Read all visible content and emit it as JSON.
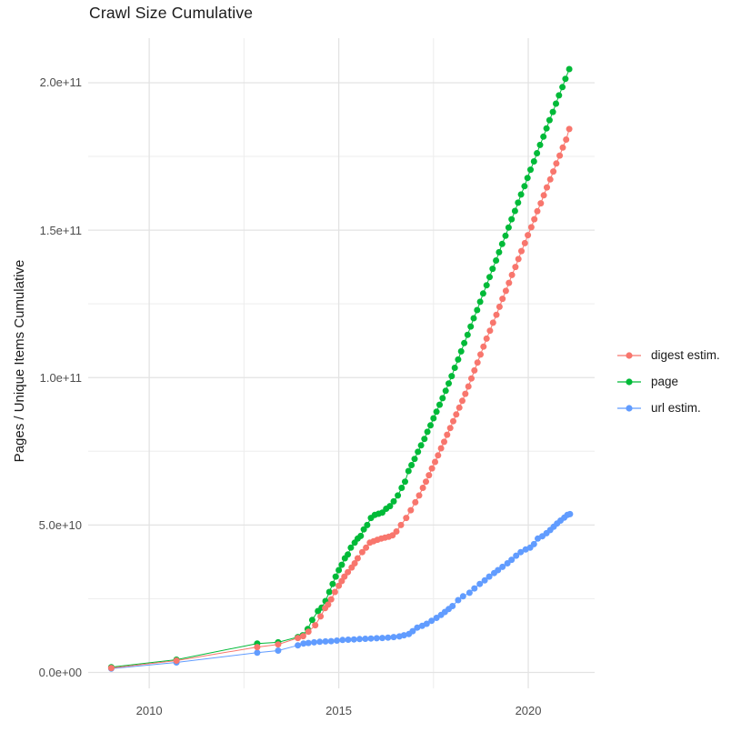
{
  "title": "Crawl Size Cumulative",
  "chart_data": {
    "type": "scatter",
    "title": "Crawl Size Cumulative",
    "xlabel": "",
    "ylabel": "Pages / Unique Items Cumulative",
    "grid": true,
    "legend_position": "right",
    "x_ticks": [
      {
        "value": 2010,
        "label": "2010"
      },
      {
        "value": 2015,
        "label": "2015"
      },
      {
        "value": 2020,
        "label": "2020"
      }
    ],
    "y_ticks": [
      {
        "value": 0,
        "label": "0.0e+00"
      },
      {
        "value": 50,
        "label": "5.0e+10"
      },
      {
        "value": 100,
        "label": "1.0e+11"
      },
      {
        "value": 150,
        "label": "1.5e+11"
      },
      {
        "value": 200,
        "label": "2.0e+11"
      }
    ],
    "xlim": [
      2008.39,
      2021.75
    ],
    "ylim_billions": [
      -5.4,
      215.1
    ],
    "point_unit": "[year, cumulative count in billions (1e9)]",
    "series": [
      {
        "name": "digest estim.",
        "color": "#F8766D",
        "points": [
          [
            2009.0,
            1.5
          ],
          [
            2010.72,
            4.0
          ],
          [
            2012.85,
            8.6
          ],
          [
            2013.4,
            9.5
          ],
          [
            2013.92,
            11.7
          ],
          [
            2014.06,
            12.3
          ],
          [
            2014.2,
            13.8
          ],
          [
            2014.38,
            16.0
          ],
          [
            2014.52,
            19.0
          ],
          [
            2014.64,
            21.8
          ],
          [
            2014.72,
            23.0
          ],
          [
            2014.8,
            24.8
          ],
          [
            2014.9,
            27.3
          ],
          [
            2015.0,
            29.4
          ],
          [
            2015.08,
            31.0
          ],
          [
            2015.15,
            32.5
          ],
          [
            2015.24,
            34.0
          ],
          [
            2015.34,
            35.6
          ],
          [
            2015.42,
            37.0
          ],
          [
            2015.5,
            38.7
          ],
          [
            2015.62,
            40.8
          ],
          [
            2015.72,
            42.3
          ],
          [
            2015.82,
            44.0
          ],
          [
            2015.92,
            44.5
          ],
          [
            2016.02,
            45.0
          ],
          [
            2016.12,
            45.4
          ],
          [
            2016.22,
            45.7
          ],
          [
            2016.32,
            46.0
          ],
          [
            2016.42,
            46.5
          ],
          [
            2016.52,
            47.8
          ],
          [
            2016.64,
            50.0
          ],
          [
            2016.78,
            52.4
          ],
          [
            2016.9,
            55.0
          ],
          [
            2017.02,
            57.7
          ],
          [
            2017.12,
            60.0
          ],
          [
            2017.22,
            62.6
          ],
          [
            2017.3,
            64.7
          ],
          [
            2017.38,
            66.9
          ],
          [
            2017.46,
            69.2
          ],
          [
            2017.54,
            71.4
          ],
          [
            2017.62,
            73.6
          ],
          [
            2017.7,
            76.0
          ],
          [
            2017.78,
            78.2
          ],
          [
            2017.86,
            80.6
          ],
          [
            2017.94,
            82.9
          ],
          [
            2018.02,
            85.2
          ],
          [
            2018.1,
            87.5
          ],
          [
            2018.18,
            89.8
          ],
          [
            2018.26,
            92.1
          ],
          [
            2018.34,
            94.5
          ],
          [
            2018.42,
            97.0
          ],
          [
            2018.5,
            99.7
          ],
          [
            2018.58,
            102.4
          ],
          [
            2018.66,
            105.1
          ],
          [
            2018.74,
            107.8
          ],
          [
            2018.82,
            110.5
          ],
          [
            2018.9,
            113.2
          ],
          [
            2018.99,
            115.9
          ],
          [
            2019.07,
            118.6
          ],
          [
            2019.16,
            121.3
          ],
          [
            2019.24,
            124.0
          ],
          [
            2019.32,
            126.7
          ],
          [
            2019.41,
            129.4
          ],
          [
            2019.49,
            132.1
          ],
          [
            2019.57,
            134.8
          ],
          [
            2019.66,
            137.5
          ],
          [
            2019.74,
            140.2
          ],
          [
            2019.82,
            142.9
          ],
          [
            2019.91,
            145.6
          ],
          [
            2019.99,
            148.3
          ],
          [
            2020.08,
            151.0
          ],
          [
            2020.16,
            153.7
          ],
          [
            2020.24,
            156.4
          ],
          [
            2020.33,
            159.1
          ],
          [
            2020.41,
            161.8
          ],
          [
            2020.49,
            164.5
          ],
          [
            2020.58,
            167.2
          ],
          [
            2020.66,
            169.9
          ],
          [
            2020.74,
            172.6
          ],
          [
            2020.83,
            175.3
          ],
          [
            2020.91,
            178.0
          ],
          [
            2021.0,
            180.7
          ],
          [
            2021.08,
            184.3
          ]
        ]
      },
      {
        "name": "page",
        "color": "#00BA38",
        "points": [
          [
            2009.0,
            1.8
          ],
          [
            2010.72,
            4.3
          ],
          [
            2012.85,
            9.8
          ],
          [
            2013.4,
            10.2
          ],
          [
            2013.92,
            12.0
          ],
          [
            2014.05,
            12.6
          ],
          [
            2014.18,
            14.7
          ],
          [
            2014.3,
            17.8
          ],
          [
            2014.45,
            20.8
          ],
          [
            2014.55,
            22.0
          ],
          [
            2014.65,
            24.2
          ],
          [
            2014.75,
            27.3
          ],
          [
            2014.84,
            30.0
          ],
          [
            2014.92,
            32.5
          ],
          [
            2015.0,
            34.7
          ],
          [
            2015.08,
            36.5
          ],
          [
            2015.16,
            38.7
          ],
          [
            2015.24,
            40.0
          ],
          [
            2015.32,
            42.3
          ],
          [
            2015.42,
            44.0
          ],
          [
            2015.5,
            45.4
          ],
          [
            2015.58,
            46.3
          ],
          [
            2015.66,
            48.5
          ],
          [
            2015.75,
            50.0
          ],
          [
            2015.85,
            52.4
          ],
          [
            2015.95,
            53.4
          ],
          [
            2016.05,
            53.8
          ],
          [
            2016.15,
            54.2
          ],
          [
            2016.25,
            55.5
          ],
          [
            2016.35,
            56.4
          ],
          [
            2016.45,
            58.0
          ],
          [
            2016.56,
            60.0
          ],
          [
            2016.66,
            62.6
          ],
          [
            2016.75,
            64.7
          ],
          [
            2016.84,
            68.3
          ],
          [
            2016.92,
            70.3
          ],
          [
            2017.0,
            72.4
          ],
          [
            2017.09,
            74.8
          ],
          [
            2017.17,
            77.0
          ],
          [
            2017.26,
            79.2
          ],
          [
            2017.34,
            81.6
          ],
          [
            2017.42,
            83.8
          ],
          [
            2017.5,
            86.2
          ],
          [
            2017.58,
            88.4
          ],
          [
            2017.66,
            90.8
          ],
          [
            2017.74,
            93.0
          ],
          [
            2017.82,
            95.5
          ],
          [
            2017.9,
            98.0
          ],
          [
            2017.98,
            100.5
          ],
          [
            2018.06,
            103.3
          ],
          [
            2018.15,
            106.1
          ],
          [
            2018.23,
            108.9
          ],
          [
            2018.31,
            111.7
          ],
          [
            2018.4,
            114.5
          ],
          [
            2018.48,
            117.3
          ],
          [
            2018.56,
            120.1
          ],
          [
            2018.65,
            122.9
          ],
          [
            2018.73,
            125.7
          ],
          [
            2018.81,
            128.5
          ],
          [
            2018.9,
            131.3
          ],
          [
            2018.98,
            134.1
          ],
          [
            2019.06,
            136.9
          ],
          [
            2019.15,
            139.7
          ],
          [
            2019.23,
            142.5
          ],
          [
            2019.31,
            145.3
          ],
          [
            2019.4,
            148.1
          ],
          [
            2019.48,
            150.9
          ],
          [
            2019.56,
            153.7
          ],
          [
            2019.65,
            156.5
          ],
          [
            2019.73,
            159.3
          ],
          [
            2019.81,
            162.1
          ],
          [
            2019.9,
            164.9
          ],
          [
            2019.98,
            167.7
          ],
          [
            2020.06,
            170.5
          ],
          [
            2020.15,
            173.3
          ],
          [
            2020.23,
            176.1
          ],
          [
            2020.31,
            178.9
          ],
          [
            2020.4,
            181.7
          ],
          [
            2020.48,
            184.5
          ],
          [
            2020.56,
            187.3
          ],
          [
            2020.65,
            190.1
          ],
          [
            2020.73,
            192.9
          ],
          [
            2020.81,
            195.7
          ],
          [
            2020.9,
            198.5
          ],
          [
            2020.98,
            201.3
          ],
          [
            2021.08,
            204.6
          ]
        ]
      },
      {
        "name": "url estim.",
        "color": "#619CFF",
        "points": [
          [
            2009.0,
            1.3
          ],
          [
            2010.72,
            3.4
          ],
          [
            2012.85,
            6.7
          ],
          [
            2013.4,
            7.4
          ],
          [
            2013.92,
            9.2
          ],
          [
            2014.07,
            9.8
          ],
          [
            2014.2,
            10.0
          ],
          [
            2014.35,
            10.2
          ],
          [
            2014.5,
            10.4
          ],
          [
            2014.65,
            10.5
          ],
          [
            2014.8,
            10.6
          ],
          [
            2014.95,
            10.8
          ],
          [
            2015.1,
            11.0
          ],
          [
            2015.25,
            11.1
          ],
          [
            2015.4,
            11.2
          ],
          [
            2015.55,
            11.3
          ],
          [
            2015.7,
            11.4
          ],
          [
            2015.85,
            11.5
          ],
          [
            2016.0,
            11.6
          ],
          [
            2016.15,
            11.7
          ],
          [
            2016.3,
            11.8
          ],
          [
            2016.45,
            12.0
          ],
          [
            2016.6,
            12.2
          ],
          [
            2016.72,
            12.6
          ],
          [
            2016.85,
            13.0
          ],
          [
            2016.95,
            14.0
          ],
          [
            2017.07,
            15.2
          ],
          [
            2017.2,
            15.8
          ],
          [
            2017.32,
            16.5
          ],
          [
            2017.45,
            17.5
          ],
          [
            2017.58,
            18.5
          ],
          [
            2017.7,
            19.5
          ],
          [
            2017.8,
            20.5
          ],
          [
            2017.9,
            21.5
          ],
          [
            2018.0,
            22.5
          ],
          [
            2018.15,
            24.5
          ],
          [
            2018.28,
            25.8
          ],
          [
            2018.45,
            27.0
          ],
          [
            2018.58,
            28.5
          ],
          [
            2018.72,
            30.0
          ],
          [
            2018.85,
            31.2
          ],
          [
            2018.97,
            32.5
          ],
          [
            2019.1,
            33.7
          ],
          [
            2019.2,
            34.7
          ],
          [
            2019.32,
            35.8
          ],
          [
            2019.45,
            37.0
          ],
          [
            2019.56,
            38.2
          ],
          [
            2019.68,
            39.6
          ],
          [
            2019.8,
            40.8
          ],
          [
            2019.93,
            41.7
          ],
          [
            2020.05,
            42.3
          ],
          [
            2020.15,
            43.5
          ],
          [
            2020.25,
            45.4
          ],
          [
            2020.37,
            46.2
          ],
          [
            2020.48,
            47.2
          ],
          [
            2020.58,
            48.3
          ],
          [
            2020.67,
            49.4
          ],
          [
            2020.76,
            50.5
          ],
          [
            2020.85,
            51.5
          ],
          [
            2020.95,
            52.5
          ],
          [
            2021.03,
            53.4
          ],
          [
            2021.1,
            53.7
          ]
        ]
      }
    ]
  },
  "style": {
    "grid_major_color": "#E3E3E3",
    "grid_minor_color": "#EDEDED",
    "axis_text_color": "#4d4d4d",
    "text_color": "#1a1a1a",
    "background": "#ffffff"
  }
}
